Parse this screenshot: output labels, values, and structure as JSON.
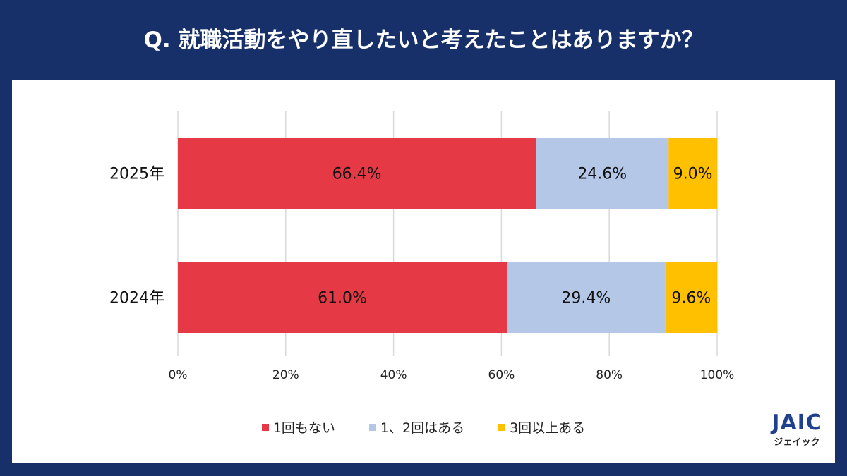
{
  "title": "Q. 就職活動をやり直したいと考えたことはありますか？",
  "colors": {
    "background": "#17306a",
    "panel": "#ffffff"
  },
  "chart_data": {
    "type": "bar",
    "orientation": "horizontal",
    "stacked": true,
    "categories": [
      "2025年",
      "2024年"
    ],
    "series": [
      {
        "name": "1回もない",
        "color": "#e53a45",
        "values": [
          66.4,
          61.0
        ],
        "labels": [
          "66.4%",
          "61.0%"
        ]
      },
      {
        "name": "1、2回はある",
        "color": "#b4c7e7",
        "values": [
          24.6,
          29.4
        ],
        "labels": [
          "24.6%",
          "29.4%"
        ]
      },
      {
        "name": "3回以上ある",
        "color": "#ffc000",
        "values": [
          9.0,
          9.6
        ],
        "labels": [
          "9.0%",
          "9.6%"
        ]
      }
    ],
    "xlim": [
      0,
      100
    ],
    "xticks": [
      "0%",
      "20%",
      "40%",
      "60%",
      "80%",
      "100%"
    ],
    "grid": true,
    "legend_position": "bottom"
  },
  "logo": {
    "mark": "JAIC",
    "kana": "ジェイック"
  }
}
